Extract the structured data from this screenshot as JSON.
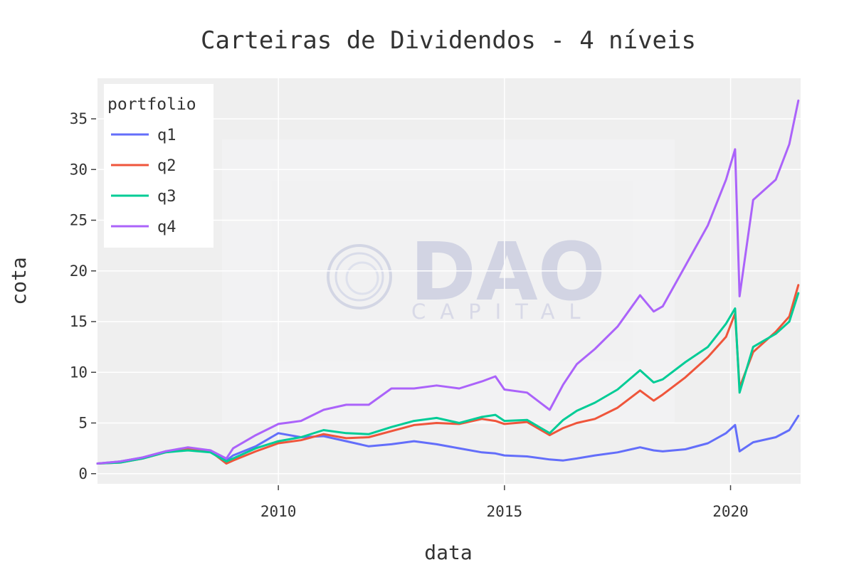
{
  "chart_data": {
    "type": "line",
    "title": "Carteiras de Dividendos - 4 níveis",
    "xlabel": "data",
    "ylabel": "cota",
    "xlim": [
      2006.0,
      2021.55
    ],
    "ylim": [
      -1,
      39
    ],
    "x_ticks": [
      2010,
      2015,
      2020
    ],
    "x_tick_labels": [
      "2010",
      "2015",
      "2020"
    ],
    "y_ticks": [
      0,
      5,
      10,
      15,
      20,
      25,
      30,
      35
    ],
    "y_tick_labels": [
      "0",
      "5",
      "10",
      "15",
      "20",
      "25",
      "30",
      "35"
    ],
    "grid": true,
    "legend": {
      "title": "portfolio",
      "position": "top-left"
    },
    "watermark": {
      "main": "DAO",
      "sub": "CAPITAL"
    },
    "x": [
      2006.0,
      2006.5,
      2007.0,
      2007.5,
      2008.0,
      2008.5,
      2008.85,
      2009.0,
      2009.5,
      2010.0,
      2010.5,
      2011.0,
      2011.5,
      2012.0,
      2012.5,
      2013.0,
      2013.5,
      2014.0,
      2014.5,
      2014.8,
      2015.0,
      2015.5,
      2016.0,
      2016.3,
      2016.6,
      2017.0,
      2017.5,
      2018.0,
      2018.3,
      2018.5,
      2019.0,
      2019.5,
      2019.9,
      2020.1,
      2020.2,
      2020.5,
      2021.0,
      2021.3,
      2021.5
    ],
    "series": [
      {
        "name": "q1",
        "color": "#636efa",
        "values": [
          1.0,
          1.2,
          1.6,
          2.2,
          2.5,
          2.3,
          1.3,
          1.8,
          2.7,
          4.0,
          3.6,
          3.7,
          3.2,
          2.7,
          2.9,
          3.2,
          2.9,
          2.5,
          2.1,
          2.0,
          1.8,
          1.7,
          1.4,
          1.3,
          1.5,
          1.8,
          2.1,
          2.6,
          2.3,
          2.2,
          2.4,
          3.0,
          4.0,
          4.8,
          2.2,
          3.1,
          3.6,
          4.3,
          5.7
        ]
      },
      {
        "name": "q2",
        "color": "#ef553b",
        "values": [
          1.0,
          1.1,
          1.5,
          2.1,
          2.4,
          2.2,
          1.0,
          1.3,
          2.2,
          3.0,
          3.3,
          3.9,
          3.5,
          3.6,
          4.2,
          4.8,
          5.0,
          4.9,
          5.4,
          5.2,
          4.9,
          5.1,
          3.8,
          4.5,
          5.0,
          5.4,
          6.5,
          8.2,
          7.2,
          7.8,
          9.5,
          11.5,
          13.5,
          15.8,
          8.5,
          12.0,
          14.0,
          15.5,
          18.6
        ]
      },
      {
        "name": "q3",
        "color": "#00cc96",
        "values": [
          1.0,
          1.1,
          1.5,
          2.1,
          2.3,
          2.1,
          1.2,
          1.5,
          2.5,
          3.2,
          3.6,
          4.3,
          4.0,
          3.9,
          4.6,
          5.2,
          5.5,
          5.0,
          5.6,
          5.8,
          5.2,
          5.3,
          4.0,
          5.3,
          6.2,
          7.0,
          8.3,
          10.2,
          9.0,
          9.3,
          11.0,
          12.5,
          14.8,
          16.3,
          8.0,
          12.5,
          13.8,
          15.0,
          17.8
        ]
      },
      {
        "name": "q4",
        "color": "#ab63fa",
        "values": [
          1.0,
          1.2,
          1.6,
          2.2,
          2.6,
          2.3,
          1.5,
          2.5,
          3.8,
          4.9,
          5.2,
          6.3,
          6.8,
          6.8,
          8.4,
          8.4,
          8.7,
          8.4,
          9.1,
          9.6,
          8.3,
          8.0,
          6.3,
          8.8,
          10.8,
          12.3,
          14.5,
          17.6,
          16.0,
          16.5,
          20.5,
          24.5,
          29.0,
          32.0,
          17.5,
          27.0,
          29.0,
          32.5,
          36.8
        ]
      }
    ]
  }
}
